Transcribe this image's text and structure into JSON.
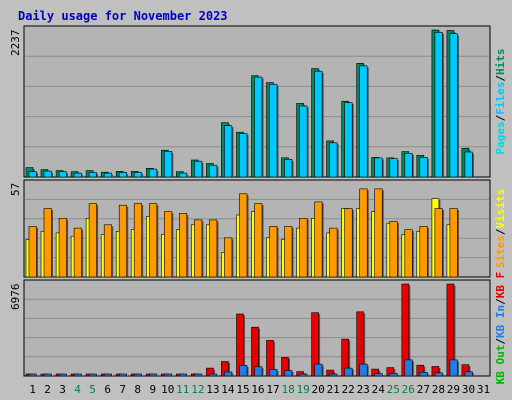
{
  "title": "Daily usage for November 2023",
  "colors": {
    "page_bg": "#ffffff",
    "frame_bg": "#c0c0c0",
    "panel_bg": "#b4b4b4",
    "title": "#0000c0",
    "hits": "#008a5c",
    "files": "#00c8ff",
    "pages": "#00d7e6",
    "visits": "#ffff00",
    "sites": "#ff9900",
    "kb": "#e60000",
    "kb_in": "#1e7ee6",
    "kb_out": "#00b400",
    "weekend_label": "#008040",
    "day_label": "#000000"
  },
  "chart_data": [
    {
      "type": "bar",
      "panel": "hits_files_pages",
      "ylabel": "2237",
      "ymax": 2237,
      "legend": [
        {
          "text": "Hits",
          "color_key": "hits"
        },
        {
          "text": "Files",
          "color_key": "files"
        },
        {
          "text": "Pages",
          "color_key": "pages"
        }
      ],
      "legend_separator": "/",
      "series": [
        {
          "name": "Hits",
          "color_key": "hits",
          "values": [
            143,
            113,
            97,
            81,
            97,
            73,
            86,
            86,
            132,
            408,
            81,
            258,
            205,
            826,
            682,
            1542,
            1437,
            292,
            1120,
            1650,
            550,
            1153,
            1731,
            298,
            290,
            387,
            330,
            2237,
            2230,
            436,
            0
          ]
        },
        {
          "name": "Files",
          "color_key": "files",
          "values": [
            80,
            90,
            80,
            60,
            70,
            60,
            70,
            70,
            120,
            390,
            60,
            240,
            180,
            780,
            660,
            1520,
            1410,
            270,
            1080,
            1610,
            520,
            1130,
            1690,
            290,
            280,
            360,
            300,
            2200,
            2180,
            380,
            0
          ]
        }
      ]
    },
    {
      "type": "bar",
      "panel": "visits_sites",
      "ylabel": "57",
      "ymax": 57,
      "legend": [
        {
          "text": "Visits",
          "color_key": "visits"
        },
        {
          "text": "Sites",
          "color_key": "sites"
        }
      ],
      "legend_separator": "/",
      "series": [
        {
          "name": "Visits",
          "color_key": "visits",
          "values": [
            23,
            28,
            27,
            25,
            36,
            26,
            28,
            29,
            37,
            26,
            29,
            32,
            32,
            15,
            38,
            40,
            24,
            23,
            30,
            36,
            27,
            42,
            42,
            40,
            33,
            26,
            28,
            48,
            32,
            0,
            0
          ]
        },
        {
          "name": "Sites",
          "color_key": "sites",
          "values": [
            31,
            42,
            36,
            30,
            45,
            32,
            44,
            45,
            45,
            40,
            39,
            35,
            35,
            24,
            51,
            45,
            31,
            31,
            36,
            46,
            30,
            42,
            54,
            54,
            34,
            29,
            31,
            42,
            42,
            0,
            0
          ]
        }
      ]
    },
    {
      "type": "bar",
      "panel": "kbytes",
      "ylabel": "6976",
      "ymax": 6976,
      "legend": [
        {
          "text": "KB F",
          "color_key": "kb"
        },
        {
          "text": "KB In",
          "color_key": "kb_in"
        },
        {
          "text": "KB Out",
          "color_key": "kb_out"
        }
      ],
      "legend_separator": "/",
      "series": [
        {
          "name": "KB F",
          "color_key": "kb",
          "values": [
            150,
            130,
            110,
            100,
            120,
            90,
            100,
            100,
            140,
            150,
            110,
            160,
            600,
            1100,
            4700,
            3700,
            2700,
            1410,
            330,
            4800,
            450,
            2790,
            4870,
            520,
            640,
            6976,
            820,
            720,
            6976,
            860,
            0
          ]
        },
        {
          "name": "KB In",
          "color_key": "kb_in",
          "values": [
            40,
            35,
            30,
            25,
            30,
            25,
            30,
            30,
            40,
            60,
            30,
            50,
            150,
            300,
            800,
            700,
            500,
            420,
            120,
            900,
            150,
            600,
            900,
            180,
            200,
            1220,
            280,
            240,
            1220,
            320,
            0
          ]
        }
      ]
    }
  ],
  "x_axis": {
    "labels": [
      "1",
      "2",
      "3",
      "4",
      "5",
      "6",
      "7",
      "8",
      "9",
      "10",
      "11",
      "12",
      "13",
      "14",
      "15",
      "16",
      "17",
      "18",
      "19",
      "20",
      "21",
      "22",
      "23",
      "24",
      "25",
      "26",
      "27",
      "28",
      "29",
      "30",
      "31"
    ],
    "weekend_days": [
      4,
      5,
      11,
      12,
      18,
      19,
      25,
      26
    ]
  }
}
